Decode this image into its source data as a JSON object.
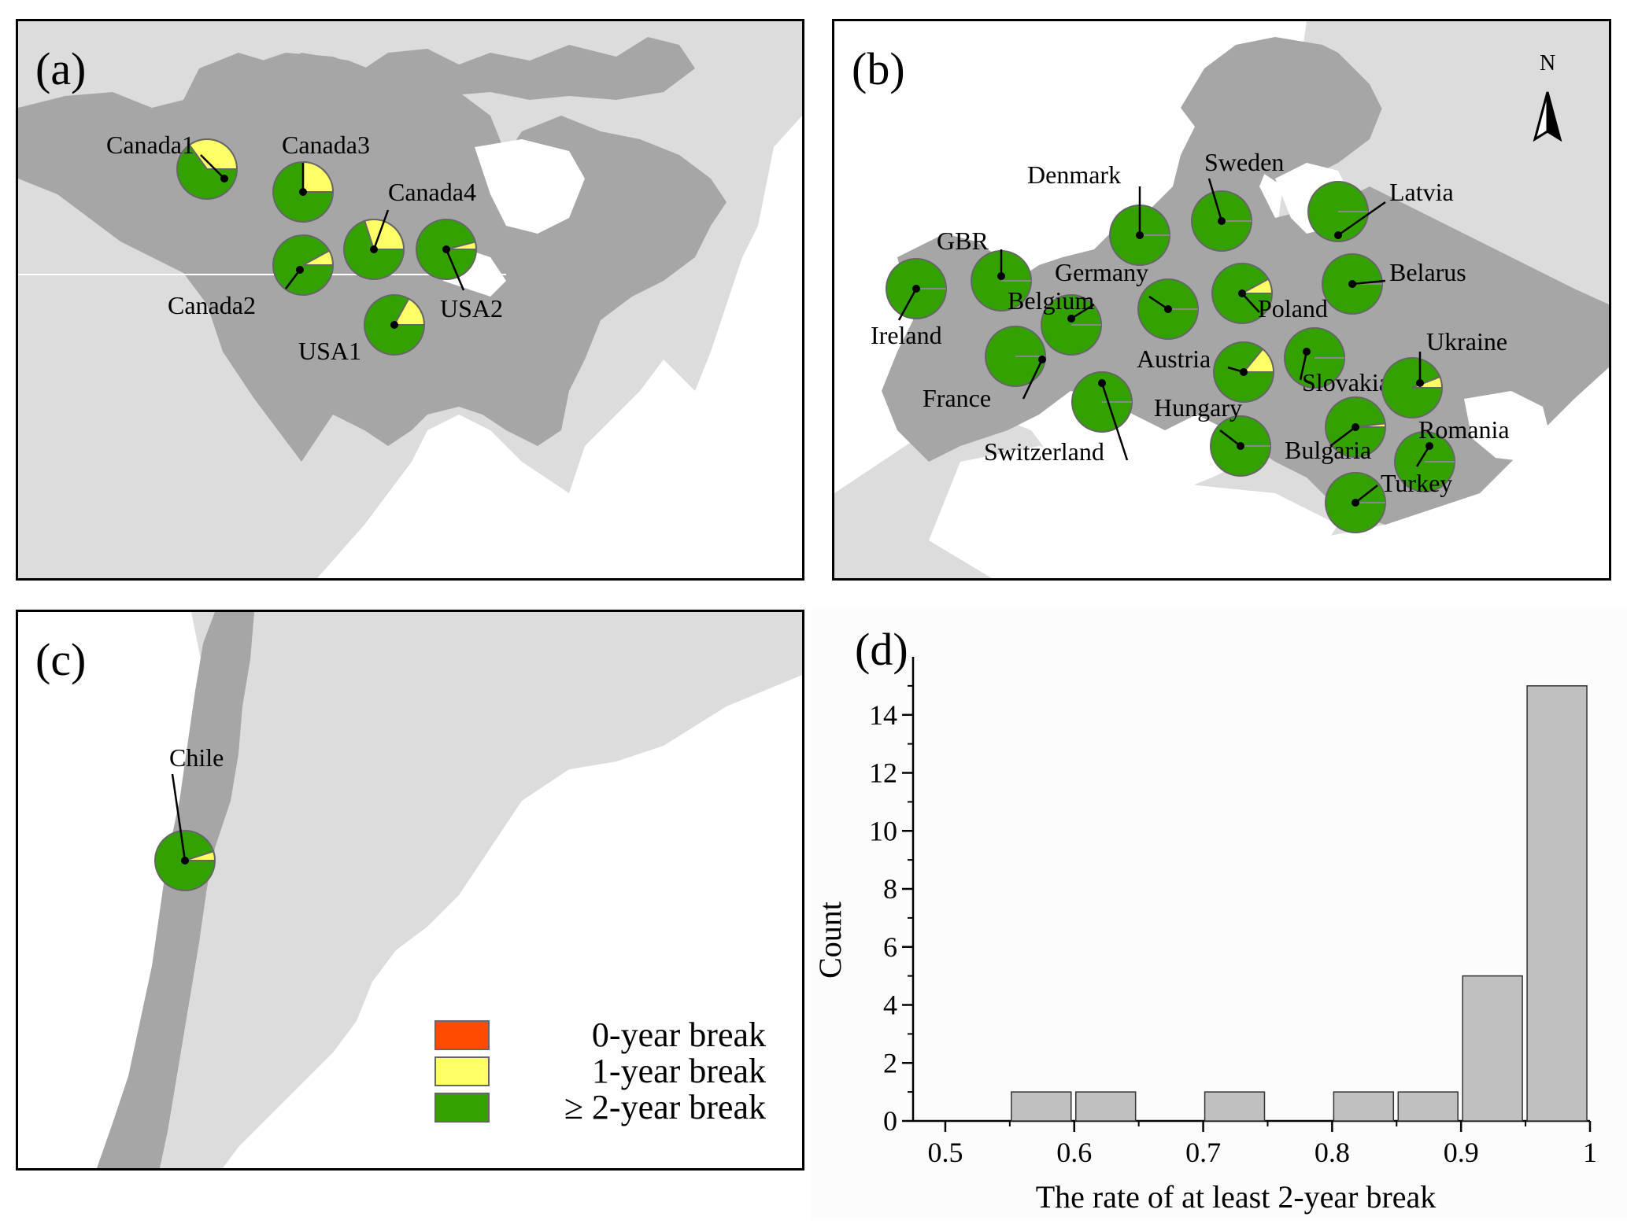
{
  "colors": {
    "zero_year": "#ff4a00",
    "one_year": "#ffff66",
    "two_plus_year": "#33a100",
    "land_focus": "#a6a6a6",
    "land_other": "#dcdcdc",
    "bar_fill": "#c0c0c0"
  },
  "panels": {
    "a": {
      "label": "(a)"
    },
    "b": {
      "label": "(b)",
      "north_label": "N"
    },
    "c": {
      "label": "(c)"
    },
    "d": {
      "label": "(d)"
    }
  },
  "pies_a": [
    {
      "name": "Canada1",
      "one_year_share": 0.35,
      "two_plus_share": 0.65
    },
    {
      "name": "Canada2",
      "one_year_share": 0.08,
      "two_plus_share": 0.92
    },
    {
      "name": "Canada3",
      "one_year_share": 0.25,
      "two_plus_share": 0.75
    },
    {
      "name": "Canada4",
      "one_year_share": 0.3,
      "two_plus_share": 0.7
    },
    {
      "name": "USA1",
      "one_year_share": 0.17,
      "two_plus_share": 0.83
    },
    {
      "name": "USA2",
      "one_year_share": 0.04,
      "two_plus_share": 0.96
    }
  ],
  "pies_b": [
    {
      "name": "Ireland",
      "one_year_share": 0.0,
      "two_plus_share": 1.0
    },
    {
      "name": "GBR",
      "one_year_share": 0.0,
      "two_plus_share": 1.0
    },
    {
      "name": "Denmark",
      "one_year_share": 0.0,
      "two_plus_share": 1.0
    },
    {
      "name": "Sweden",
      "one_year_share": 0.0,
      "two_plus_share": 1.0
    },
    {
      "name": "Latvia",
      "one_year_share": 0.0,
      "two_plus_share": 1.0
    },
    {
      "name": "Germany",
      "one_year_share": 0.0,
      "two_plus_share": 1.0
    },
    {
      "name": "Belgium",
      "one_year_share": 0.0,
      "two_plus_share": 1.0
    },
    {
      "name": "Poland",
      "one_year_share": 0.08,
      "two_plus_share": 0.92
    },
    {
      "name": "Belarus",
      "one_year_share": 0.0,
      "two_plus_share": 1.0
    },
    {
      "name": "France",
      "one_year_share": 0.0,
      "two_plus_share": 1.0
    },
    {
      "name": "Austria",
      "one_year_share": 0.14,
      "two_plus_share": 0.86
    },
    {
      "name": "Slovakia",
      "one_year_share": 0.0,
      "two_plus_share": 1.0
    },
    {
      "name": "Ukraine",
      "one_year_share": 0.06,
      "two_plus_share": 0.94
    },
    {
      "name": "Switzerland",
      "one_year_share": 0.0,
      "two_plus_share": 1.0
    },
    {
      "name": "Hungary",
      "one_year_share": 0.0,
      "two_plus_share": 1.0
    },
    {
      "name": "Bulgaria",
      "one_year_share": 0.02,
      "two_plus_share": 0.98
    },
    {
      "name": "Romania",
      "one_year_share": 0.0,
      "two_plus_share": 1.0
    },
    {
      "name": "Turkey",
      "one_year_share": 0.0,
      "two_plus_share": 1.0
    }
  ],
  "pies_c": [
    {
      "name": "Chile",
      "one_year_share": 0.05,
      "two_plus_share": 0.95
    }
  ],
  "legend": [
    {
      "label": "0-year break",
      "color_key": "zero_year"
    },
    {
      "label": "1-year break",
      "color_key": "one_year"
    },
    {
      "label": "≥ 2-year break",
      "color_key": "two_plus_year"
    }
  ],
  "chart_data": {
    "type": "bar",
    "title": "",
    "xlabel": "The rate of at least 2-year break",
    "ylabel": "Count",
    "bin_width": 0.05,
    "bins": [
      {
        "x": 0.55,
        "count": 1
      },
      {
        "x": 0.6,
        "count": 1
      },
      {
        "x": 0.7,
        "count": 1
      },
      {
        "x": 0.8,
        "count": 1
      },
      {
        "x": 0.85,
        "count": 1
      },
      {
        "x": 0.9,
        "count": 5
      },
      {
        "x": 0.95,
        "count": 15
      }
    ],
    "xlim": [
      0.475,
      1.0
    ],
    "ylim": [
      0,
      16
    ],
    "xticks": [
      0.5,
      0.6,
      0.7,
      0.8,
      0.9,
      1.0
    ],
    "xtick_labels": [
      "0.5",
      "0.6",
      "0.7",
      "0.8",
      "0.9",
      "1"
    ],
    "yticks": [
      0,
      2,
      4,
      6,
      8,
      10,
      12,
      14
    ],
    "ytick_labels": [
      "0",
      "2",
      "4",
      "6",
      "8",
      "10",
      "12",
      "14"
    ],
    "grid": false
  }
}
